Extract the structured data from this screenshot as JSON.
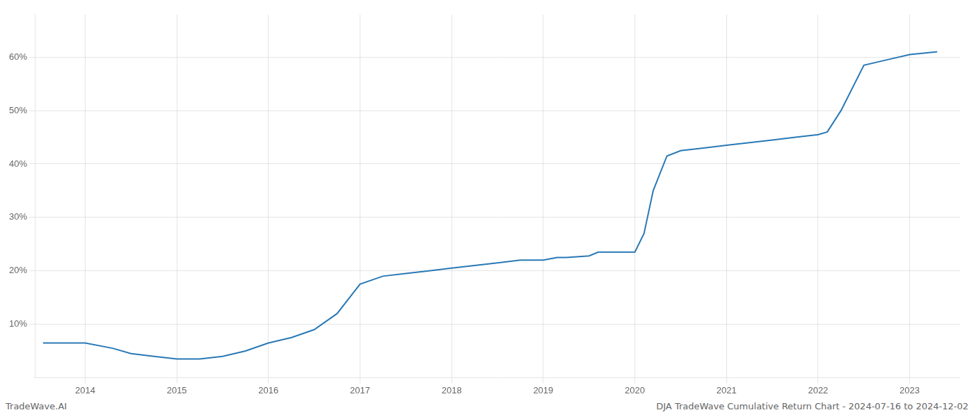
{
  "chart_data": {
    "type": "line",
    "annotations": [
      "TradeWave.AI",
      "DJA TradeWave Cumulative Return Chart - 2024-07-16 to 2024-12-02"
    ],
    "x": [
      2013.54,
      2014.0,
      2014.3,
      2014.5,
      2014.75,
      2015.0,
      2015.25,
      2015.5,
      2015.75,
      2016.0,
      2016.25,
      2016.5,
      2016.75,
      2017.0,
      2017.25,
      2017.5,
      2017.75,
      2018.0,
      2018.25,
      2018.5,
      2018.75,
      2019.0,
      2019.15,
      2019.25,
      2019.5,
      2019.6,
      2019.75,
      2020.0,
      2020.1,
      2020.2,
      2020.35,
      2020.5,
      2020.75,
      2021.0,
      2021.25,
      2021.5,
      2021.75,
      2022.0,
      2022.1,
      2022.25,
      2022.5,
      2022.75,
      2023.0,
      2023.3
    ],
    "values": [
      6.5,
      6.5,
      5.5,
      4.5,
      4.0,
      3.5,
      3.5,
      4.0,
      5.0,
      6.5,
      7.5,
      9.0,
      12.0,
      17.5,
      19.0,
      19.5,
      20.0,
      20.5,
      21.0,
      21.5,
      22.0,
      22.0,
      22.5,
      22.5,
      22.8,
      23.5,
      23.5,
      23.5,
      27.0,
      35.0,
      41.5,
      42.5,
      43.0,
      43.5,
      44.0,
      44.5,
      45.0,
      45.5,
      46.0,
      50.0,
      58.5,
      59.5,
      60.5,
      61.0
    ],
    "color": "#2878b5",
    "xlim": [
      2013.45,
      2023.55
    ],
    "xticks": [
      2014,
      2015,
      2016,
      2017,
      2018,
      2019,
      2020,
      2021,
      2022,
      2023
    ],
    "ylim": [
      0,
      68
    ],
    "yticks": [
      {
        "value": 10,
        "label": "10%"
      },
      {
        "value": 20,
        "label": "20%"
      },
      {
        "value": 30,
        "label": "30%"
      },
      {
        "value": 40,
        "label": "40%"
      },
      {
        "value": 50,
        "label": "50%"
      },
      {
        "value": 60,
        "label": "60%"
      }
    ],
    "grid": true
  }
}
